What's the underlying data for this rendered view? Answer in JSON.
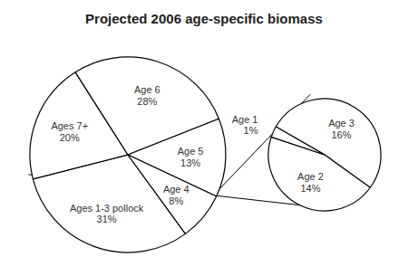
{
  "chart_data": [
    {
      "type": "pie",
      "title": "Projected 2006 age-specific biomass",
      "categories": [
        "Ages 1-3 pollock",
        "Ages 7+",
        "Age 6",
        "Age 5",
        "Age 4"
      ],
      "values": [
        31,
        20,
        28,
        13,
        8
      ],
      "value_labels": [
        "31%",
        "20%",
        "28%",
        "13%",
        "8%"
      ],
      "colors": [
        "white",
        "white",
        "white",
        "white",
        "white"
      ]
    },
    {
      "type": "pie",
      "categories": [
        "Age 3",
        "Age 2",
        "Age 1"
      ],
      "values": [
        16,
        14,
        1
      ],
      "value_labels": [
        "16%",
        "14%",
        "1%"
      ],
      "colors": [
        "white",
        "white",
        "white"
      ]
    }
  ]
}
